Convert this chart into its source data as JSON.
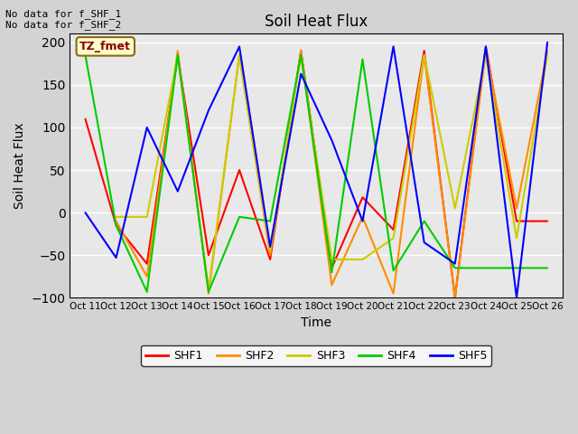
{
  "title": "Soil Heat Flux",
  "ylabel": "Soil Heat Flux",
  "xlabel": "Time",
  "text_top_left": "No data for f_SHF_1\nNo data for f_SHF_2",
  "annotation_box": "TZ_fmet",
  "ylim": [
    -100,
    210
  ],
  "xtick_labels": [
    "Oct 11",
    "Oct 12",
    "Oct 13",
    "Oct 14",
    "Oct 15",
    "Oct 16",
    "Oct 17",
    "Oct 18",
    "Oct 19",
    "Oct 20",
    "Oct 21",
    "Oct 22",
    "Oct 23",
    "Oct 24",
    "Oct 25",
    "Oct 26"
  ],
  "series": {
    "SHF1": {
      "color": "#ff0000",
      "y": [
        110,
        -15,
        -60,
        185,
        -50,
        50,
        -55,
        190,
        -65,
        18,
        -20,
        190,
        -100,
        195,
        -10,
        -10
      ]
    },
    "SHF2": {
      "color": "#ff8c00",
      "y": [
        null,
        -10,
        -75,
        190,
        -95,
        185,
        -50,
        190,
        -85,
        -5,
        -95,
        185,
        -100,
        190,
        5,
        190
      ]
    },
    "SHF3": {
      "color": "#cccc00",
      "y": [
        null,
        -5,
        -5,
        185,
        -90,
        185,
        -45,
        185,
        -55,
        -55,
        -30,
        185,
        5,
        185,
        -30,
        185
      ]
    },
    "SHF4": {
      "color": "#00cc00",
      "y": [
        185,
        -15,
        -93,
        185,
        -93,
        -5,
        -10,
        185,
        -70,
        180,
        -68,
        -10,
        -65,
        -65,
        -65,
        -65
      ]
    },
    "SHF5": {
      "color": "#0000ff",
      "y": [
        0,
        -53,
        100,
        25,
        120,
        195,
        -40,
        163,
        85,
        -10,
        195,
        -35,
        -60,
        195,
        -100,
        200
      ]
    }
  },
  "legend_entries": [
    "SHF1",
    "SHF2",
    "SHF3",
    "SHF4",
    "SHF5"
  ],
  "legend_colors": [
    "#ff0000",
    "#ff8c00",
    "#cccc00",
    "#00cc00",
    "#0000ff"
  ],
  "bg_color": "#d3d3d3",
  "plot_bg_color": "#e8e8e8",
  "grid_color": "white",
  "ytick_positions": [
    -100,
    -50,
    0,
    50,
    100,
    150,
    200
  ],
  "linewidth": 1.5
}
